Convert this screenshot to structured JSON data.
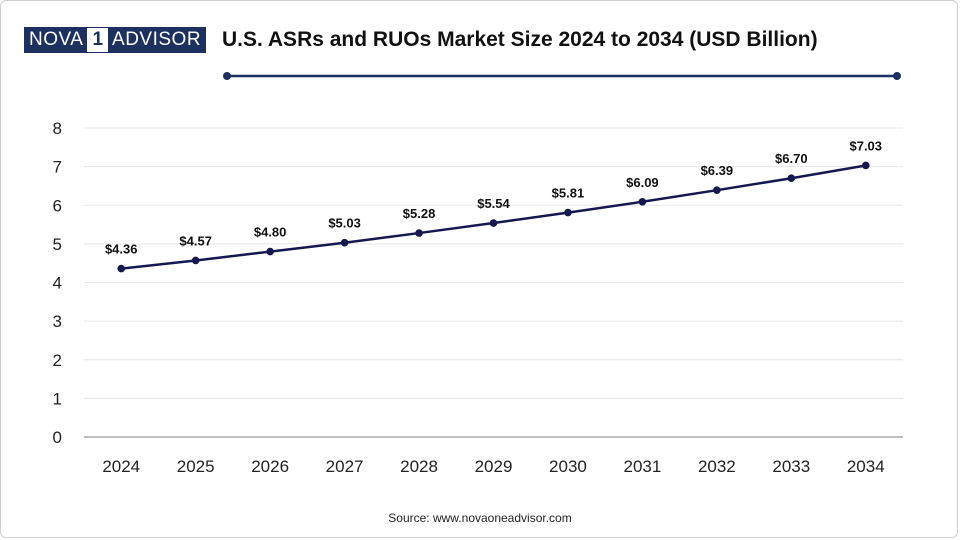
{
  "brand": {
    "logo_left": "NOVA",
    "logo_mid": "1",
    "logo_right": "ADVISOR"
  },
  "colors": {
    "line": "#141850",
    "marker": "#141850",
    "rule": "#1d3160",
    "grid": "#e6e6e6",
    "axis": "#999999"
  },
  "source": "Source: www.novaoneadvisor.com",
  "chart_data": {
    "type": "line",
    "title": "U.S. ASRs and RUOs Market Size 2024 to 2034 (USD Billion)",
    "categories": [
      "2024",
      "2025",
      "2026",
      "2027",
      "2028",
      "2029",
      "2030",
      "2031",
      "2032",
      "2033",
      "2034"
    ],
    "series": [
      {
        "values": [
          4.36,
          4.57,
          4.8,
          5.03,
          5.28,
          5.54,
          5.81,
          6.09,
          6.39,
          6.7,
          7.03
        ]
      }
    ],
    "data_labels": [
      "$4.36",
      "$4.57",
      "$4.80",
      "$5.03",
      "$5.28",
      "$5.54",
      "$5.81",
      "$6.09",
      "$6.39",
      "$6.70",
      "$7.03"
    ],
    "yticks": [
      "0",
      "1",
      "2",
      "3",
      "4",
      "5",
      "6",
      "7",
      "8"
    ],
    "ylim": [
      0,
      8
    ],
    "xlabel": "",
    "ylabel": "",
    "grid": true
  }
}
